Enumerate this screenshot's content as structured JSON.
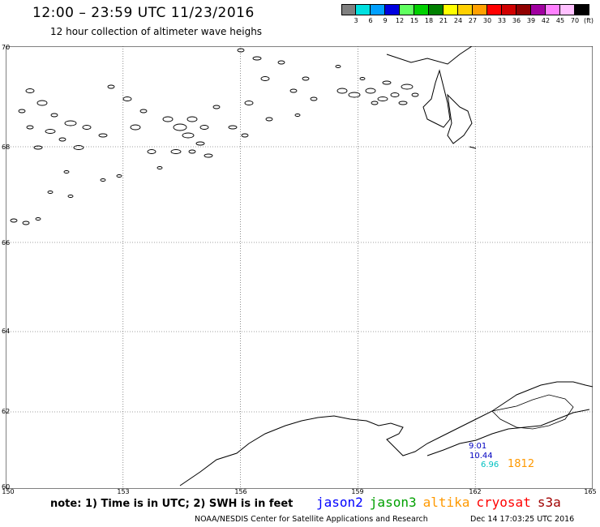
{
  "header": {
    "title": "12:00 – 23:59 UTC 11/23/2016",
    "subtitle": "12 hour collection of altimeter wave heighs"
  },
  "legend": {
    "colors": [
      "#808080",
      "#00e0e0",
      "#00a0ff",
      "#0000e0",
      "#60ff60",
      "#00d000",
      "#008000",
      "#ffff00",
      "#ffd000",
      "#ffa000",
      "#ff0000",
      "#d00000",
      "#900000",
      "#a000a0",
      "#ff80ff",
      "#ffc0ff",
      "#000000"
    ],
    "labels": [
      "3",
      "6",
      "9",
      "12",
      "15",
      "18",
      "21",
      "24",
      "27",
      "30",
      "33",
      "36",
      "39",
      "42",
      "45",
      "70"
    ],
    "unit": "(ft)"
  },
  "map": {
    "lat_labels": [
      "70",
      "68",
      "66",
      "64",
      "62",
      "60"
    ],
    "lon_labels": [
      "150",
      "153",
      "156",
      "159",
      "162",
      "165"
    ],
    "observations": [
      {
        "text": "9.01",
        "color": "#0000c0"
      },
      {
        "text": "10.44",
        "color": "#0000c0"
      },
      {
        "text": "6.96",
        "color": "#00c0c0"
      },
      {
        "text": "1812",
        "color": "#ff9900"
      }
    ]
  },
  "footer": {
    "note": "note: 1) Time is in UTC; 2) SWH is in feet",
    "satellites": [
      {
        "name": "jason2",
        "color": "#0000ff"
      },
      {
        "name": "jason3",
        "color": "#00a000"
      },
      {
        "name": "altika",
        "color": "#ff9900"
      },
      {
        "name": "cryosat",
        "color": "#ff0000"
      },
      {
        "name": "s3a",
        "color": "#a00000"
      }
    ],
    "credit": "NOAA/NESDIS Center for Satellite Applications and Research",
    "timestamp": "Dec 14 17:03:25 UTC 2016"
  }
}
